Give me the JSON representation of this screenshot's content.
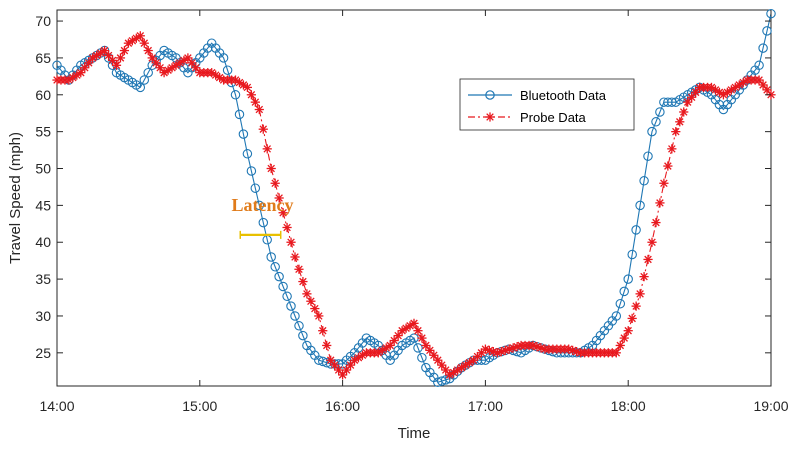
{
  "chart_data": {
    "type": "line",
    "title": "",
    "xlabel": "Time",
    "ylabel": "Travel Speed (mph)",
    "x_ticks": [
      "14:00",
      "15:00",
      "16:00",
      "17:00",
      "18:00",
      "19:00"
    ],
    "xlim": [
      "14:00",
      "19:00"
    ],
    "y_ticks": [
      25,
      30,
      35,
      40,
      45,
      50,
      55,
      60,
      65,
      70
    ],
    "ylim": [
      20.5,
      71.5
    ],
    "grid": false,
    "legend_position": "top-right",
    "series": [
      {
        "name": "Bluetooth Data",
        "color": "#1f77b4",
        "marker": "circle",
        "line_style": "solid",
        "points": [
          [
            "14:00",
            64
          ],
          [
            "14:05",
            62
          ],
          [
            "14:10",
            64
          ],
          [
            "14:15",
            65
          ],
          [
            "14:20",
            66
          ],
          [
            "14:25",
            63
          ],
          [
            "14:30",
            62
          ],
          [
            "14:35",
            61
          ],
          [
            "14:40",
            64
          ],
          [
            "14:45",
            66
          ],
          [
            "14:50",
            65
          ],
          [
            "14:55",
            63
          ],
          [
            "15:00",
            65
          ],
          [
            "15:05",
            67
          ],
          [
            "15:10",
            65
          ],
          [
            "15:15",
            60
          ],
          [
            "15:20",
            52
          ],
          [
            "15:25",
            45
          ],
          [
            "15:30",
            38
          ],
          [
            "15:35",
            34
          ],
          [
            "15:40",
            30
          ],
          [
            "15:45",
            26
          ],
          [
            "15:50",
            24
          ],
          [
            "15:55",
            23.5
          ],
          [
            "16:00",
            23.5
          ],
          [
            "16:05",
            25
          ],
          [
            "16:10",
            27
          ],
          [
            "16:15",
            26
          ],
          [
            "16:20",
            24
          ],
          [
            "16:25",
            26
          ],
          [
            "16:30",
            27
          ],
          [
            "16:35",
            23
          ],
          [
            "16:40",
            21
          ],
          [
            "16:45",
            21.5
          ],
          [
            "16:50",
            23
          ],
          [
            "16:55",
            24
          ],
          [
            "17:00",
            24
          ],
          [
            "17:05",
            25
          ],
          [
            "17:10",
            25.5
          ],
          [
            "17:15",
            25
          ],
          [
            "17:20",
            26
          ],
          [
            "17:25",
            25.5
          ],
          [
            "17:30",
            25
          ],
          [
            "17:35",
            25
          ],
          [
            "17:40",
            25
          ],
          [
            "17:45",
            26
          ],
          [
            "17:50",
            28
          ],
          [
            "17:55",
            30
          ],
          [
            "18:00",
            35
          ],
          [
            "18:05",
            45
          ],
          [
            "18:10",
            55
          ],
          [
            "18:15",
            59
          ],
          [
            "18:20",
            59
          ],
          [
            "18:25",
            60
          ],
          [
            "18:30",
            61
          ],
          [
            "18:35",
            60
          ],
          [
            "18:40",
            58
          ],
          [
            "18:45",
            60
          ],
          [
            "18:50",
            62
          ],
          [
            "18:55",
            64
          ],
          [
            "19:00",
            71
          ]
        ]
      },
      {
        "name": "Probe Data",
        "color": "#e8191f",
        "marker": "asterisk",
        "line_style": "dash-dot",
        "points": [
          [
            "14:00",
            62
          ],
          [
            "14:05",
            62
          ],
          [
            "14:10",
            63
          ],
          [
            "14:15",
            65
          ],
          [
            "14:20",
            66
          ],
          [
            "14:25",
            64
          ],
          [
            "14:30",
            67
          ],
          [
            "14:35",
            68
          ],
          [
            "14:40",
            65
          ],
          [
            "14:45",
            63
          ],
          [
            "14:50",
            64
          ],
          [
            "14:55",
            65
          ],
          [
            "15:00",
            63
          ],
          [
            "15:05",
            63
          ],
          [
            "15:10",
            62
          ],
          [
            "15:15",
            62
          ],
          [
            "15:20",
            61
          ],
          [
            "15:25",
            58
          ],
          [
            "15:30",
            50
          ],
          [
            "15:35",
            44
          ],
          [
            "15:40",
            38
          ],
          [
            "15:45",
            33
          ],
          [
            "15:50",
            30
          ],
          [
            "15:55",
            24
          ],
          [
            "16:00",
            22
          ],
          [
            "16:05",
            24
          ],
          [
            "16:10",
            25
          ],
          [
            "16:15",
            25
          ],
          [
            "16:20",
            26
          ],
          [
            "16:25",
            28
          ],
          [
            "16:30",
            29
          ],
          [
            "16:35",
            26
          ],
          [
            "16:40",
            24
          ],
          [
            "16:45",
            22
          ],
          [
            "16:50",
            23
          ],
          [
            "16:55",
            24
          ],
          [
            "17:00",
            25.5
          ],
          [
            "17:05",
            25
          ],
          [
            "17:10",
            25.5
          ],
          [
            "17:15",
            26
          ],
          [
            "17:20",
            26
          ],
          [
            "17:25",
            25.5
          ],
          [
            "17:30",
            25.5
          ],
          [
            "17:35",
            25.5
          ],
          [
            "17:40",
            25
          ],
          [
            "17:45",
            25
          ],
          [
            "17:50",
            25
          ],
          [
            "17:55",
            25
          ],
          [
            "18:00",
            28
          ],
          [
            "18:05",
            33
          ],
          [
            "18:10",
            40
          ],
          [
            "18:15",
            48
          ],
          [
            "18:20",
            55
          ],
          [
            "18:25",
            59
          ],
          [
            "18:30",
            61
          ],
          [
            "18:35",
            61
          ],
          [
            "18:40",
            60
          ],
          [
            "18:45",
            61
          ],
          [
            "18:50",
            62
          ],
          [
            "18:55",
            62
          ],
          [
            "19:00",
            60
          ]
        ]
      }
    ],
    "annotations": [
      {
        "text": "Latency",
        "color": "#e07b1a",
        "arrow_color": "#e8c000",
        "y": 41,
        "x_from": "15:17",
        "x_to": "15:34"
      }
    ]
  }
}
